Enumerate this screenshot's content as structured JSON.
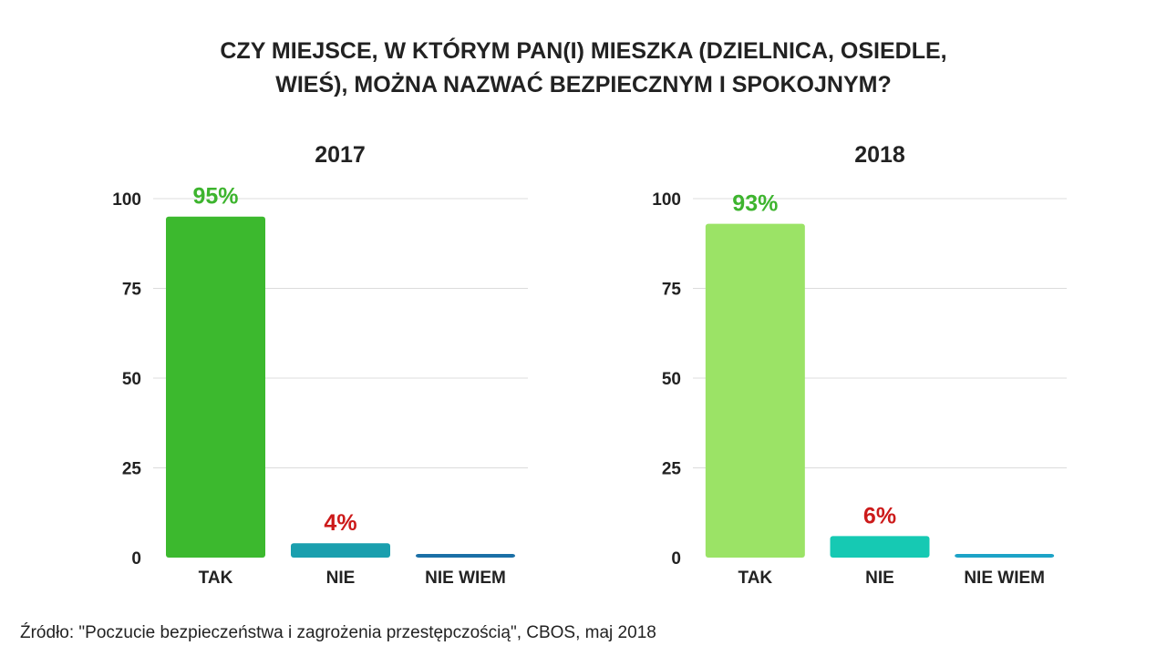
{
  "title_line1": "CZY MIEJSCE, W KTÓRYM PAN(I) MIESZKA (DZIELNICA, OSIEDLE,",
  "title_line2": "WIEŚ), MOŻNA NAZWAĆ BEZPIECZNYM I SPOKOJNYM?",
  "source": "Źródło: \"Poczucie bezpieczeństwa i zagrożenia przestępczością\", CBOS, maj 2018",
  "chart_data": [
    {
      "type": "bar",
      "title": "2017",
      "categories": [
        "TAK",
        "NIE",
        "NIE WIEM"
      ],
      "values": [
        95,
        4,
        1
      ],
      "value_labels": [
        "95%",
        "4%",
        ""
      ],
      "label_colors": [
        "#3db42e",
        "#cc1a1a",
        ""
      ],
      "bar_colors": [
        "#3cb92e",
        "#1a9fae",
        "#1a6fa6"
      ],
      "ylim": [
        0,
        100
      ],
      "yticks": [
        0,
        25,
        50,
        75,
        100
      ],
      "xlabel": "",
      "ylabel": "",
      "grid": true
    },
    {
      "type": "bar",
      "title": "2018",
      "categories": [
        "TAK",
        "NIE",
        "NIE WIEM"
      ],
      "values": [
        93,
        6,
        1
      ],
      "value_labels": [
        "93%",
        "6%",
        ""
      ],
      "label_colors": [
        "#3db42e",
        "#cc1a1a",
        ""
      ],
      "bar_colors": [
        "#9be366",
        "#16c9b3",
        "#1ca3c7"
      ],
      "ylim": [
        0,
        100
      ],
      "yticks": [
        0,
        25,
        50,
        75,
        100
      ],
      "xlabel": "",
      "ylabel": "",
      "grid": true
    }
  ]
}
